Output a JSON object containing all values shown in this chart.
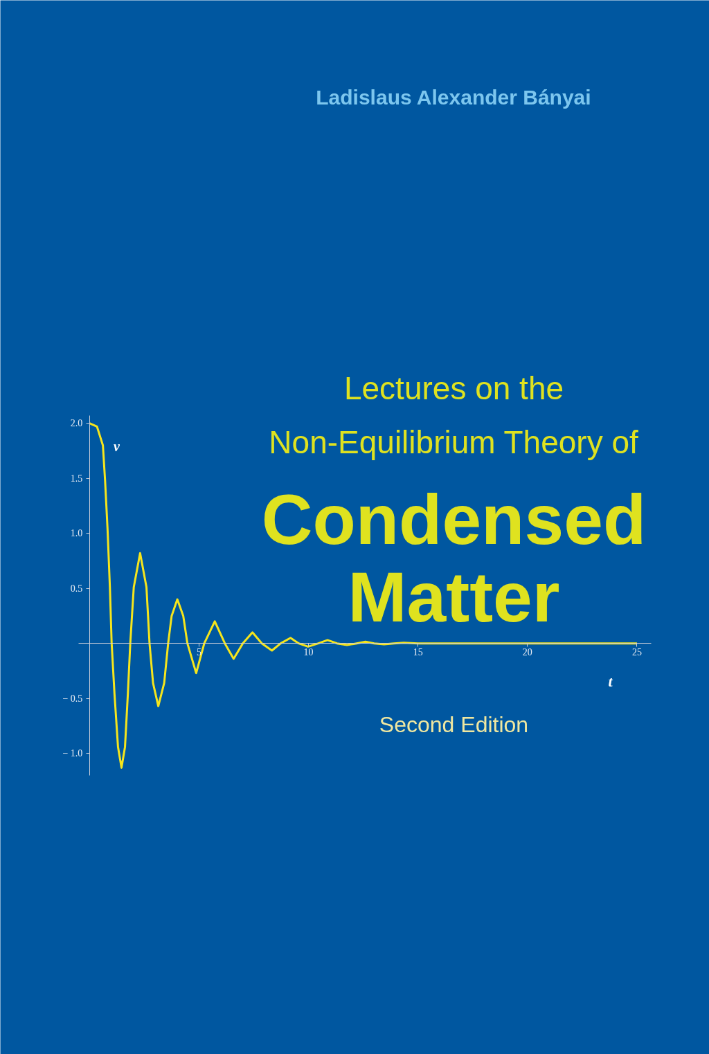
{
  "chart_data": {
    "type": "line",
    "title": "Lectures on the\nNon-Equilibrium Theory of",
    "subtitle": "Condensed\nMatter",
    "xlabel": "t",
    "ylabel": "v",
    "annotations": [
      "Ladislaus Alexander Bányai",
      "Second Edition"
    ],
    "x": [
      0,
      0.34,
      0.61,
      0.71,
      0.82,
      0.93,
      1.01,
      1.14,
      1.3,
      1.46,
      1.62,
      1.75,
      1.86,
      2.02,
      2.31,
      2.6,
      2.74,
      2.9,
      3.14,
      3.41,
      3.59,
      3.75,
      4.01,
      4.28,
      4.47,
      4.87,
      5.24,
      5.72,
      6.18,
      6.58,
      7.0,
      7.44,
      7.87,
      8.33,
      8.73,
      9.18,
      9.55,
      9.98,
      10.45,
      10.87,
      11.3,
      11.76,
      12.2,
      12.6,
      13.0,
      13.45,
      13.9,
      14.35,
      15.0,
      16,
      18,
      20,
      22,
      25
    ],
    "series": [
      {
        "color": "#f5e51c",
        "values": [
          2.0,
          1.97,
          1.8,
          1.48,
          1.05,
          0.51,
          0,
          -0.46,
          -0.94,
          -1.13,
          -0.94,
          -0.46,
          0,
          0.51,
          0.82,
          0.51,
          0,
          -0.36,
          -0.57,
          -0.36,
          0,
          0.25,
          0.4,
          0.25,
          0,
          -0.27,
          0,
          0.2,
          0,
          -0.14,
          0,
          0.1,
          0,
          -0.065,
          0,
          0.05,
          0,
          -0.03,
          0,
          0.03,
          0,
          -0.015,
          0,
          0.015,
          0,
          -0.008,
          0,
          0.006,
          0,
          0,
          0,
          0,
          0,
          0
        ]
      }
    ],
    "xlim": [
      -0.5,
      25.65
    ],
    "ylim": [
      -1.2,
      2.07
    ],
    "xticks": [
      5,
      10,
      15,
      20,
      25
    ],
    "yticks": [
      {
        "value": -1.0,
        "label": "− 1.0"
      },
      {
        "value": -0.5,
        "label": "− 0.5"
      },
      {
        "value": 0.5,
        "label": "0.5"
      },
      {
        "value": 1.0,
        "label": "1.0"
      },
      {
        "value": 1.5,
        "label": "1.5"
      },
      {
        "value": 2.0,
        "label": "2.0"
      }
    ]
  }
}
